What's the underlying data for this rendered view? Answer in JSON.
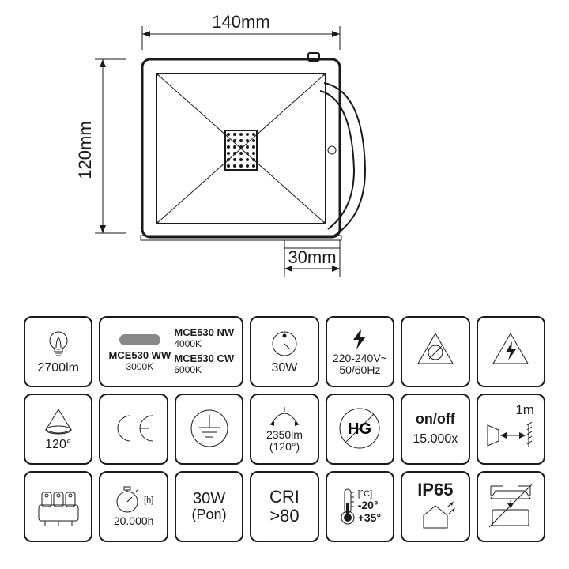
{
  "diagram": {
    "width_label": "140mm",
    "height_label": "120mm",
    "depth_label": "30mm",
    "stroke": "#1a1a1a",
    "led_grid": {
      "cols": 5,
      "rows": 6
    }
  },
  "icons": {
    "row1": [
      {
        "key": "lumens",
        "label": "2700lm"
      },
      {
        "key": "models",
        "left_top": "MCE530 WW",
        "left_bot": "3000K",
        "right": [
          [
            "MCE530 NW",
            "4000K"
          ],
          [
            "MCE530 CW",
            "6000K"
          ]
        ]
      },
      {
        "key": "power",
        "label": "30W"
      },
      {
        "key": "voltage",
        "line1": "220-240V~",
        "line2": "50/60Hz"
      },
      {
        "key": "no-lamp"
      },
      {
        "key": "hv-warn"
      }
    ],
    "row2": [
      {
        "key": "beam",
        "label": "120°"
      },
      {
        "key": "ce"
      },
      {
        "key": "earth"
      },
      {
        "key": "lumens-angle",
        "line1": "2350lm",
        "line2": "(120°)"
      },
      {
        "key": "no-hg",
        "text": "HG"
      },
      {
        "key": "cycles",
        "line1": "on/off",
        "line2": "15.000x"
      },
      {
        "key": "distance",
        "top": "1m"
      }
    ],
    "row3": [
      {
        "key": "terminal"
      },
      {
        "key": "lifetime",
        "unit": "[h]",
        "label": "20.000h"
      },
      {
        "key": "pon",
        "line1": "30W",
        "line2": "(Pon)"
      },
      {
        "key": "cri",
        "line1": "CRI",
        "line2": ">80"
      },
      {
        "key": "temp",
        "unit": "[°C]",
        "t1": "-20°",
        "t2": "+35°"
      },
      {
        "key": "ip",
        "line1": "IP65"
      },
      {
        "key": "no-cover"
      }
    ]
  }
}
